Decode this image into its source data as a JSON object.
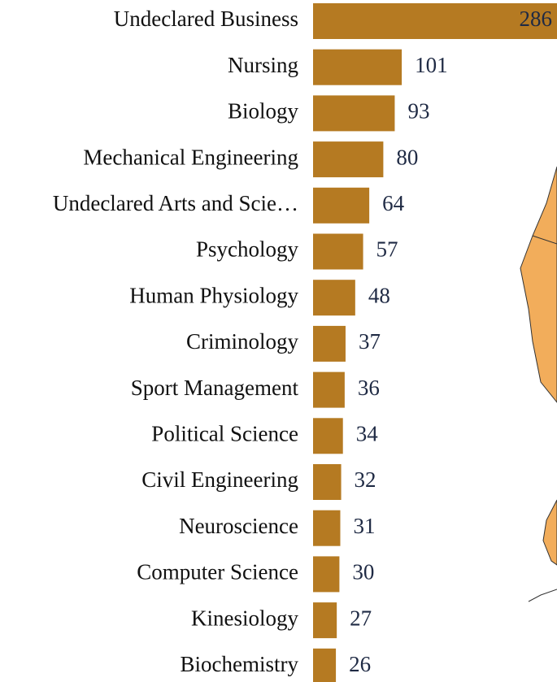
{
  "chart_data": {
    "type": "barh",
    "categories": [
      "Undeclared Business",
      "Nursing",
      "Biology",
      "Mechanical Engineering",
      "Undeclared Arts and Scie…",
      "Psychology",
      "Human Physiology",
      "Criminology",
      "Sport Management",
      "Political Science",
      "Civil Engineering",
      "Neuroscience",
      "Computer Science",
      "Kinesiology",
      "Biochemistry"
    ],
    "values": [
      286,
      101,
      93,
      80,
      64,
      57,
      48,
      37,
      36,
      34,
      32,
      31,
      30,
      27,
      26
    ],
    "color": "#b57a22"
  }
}
